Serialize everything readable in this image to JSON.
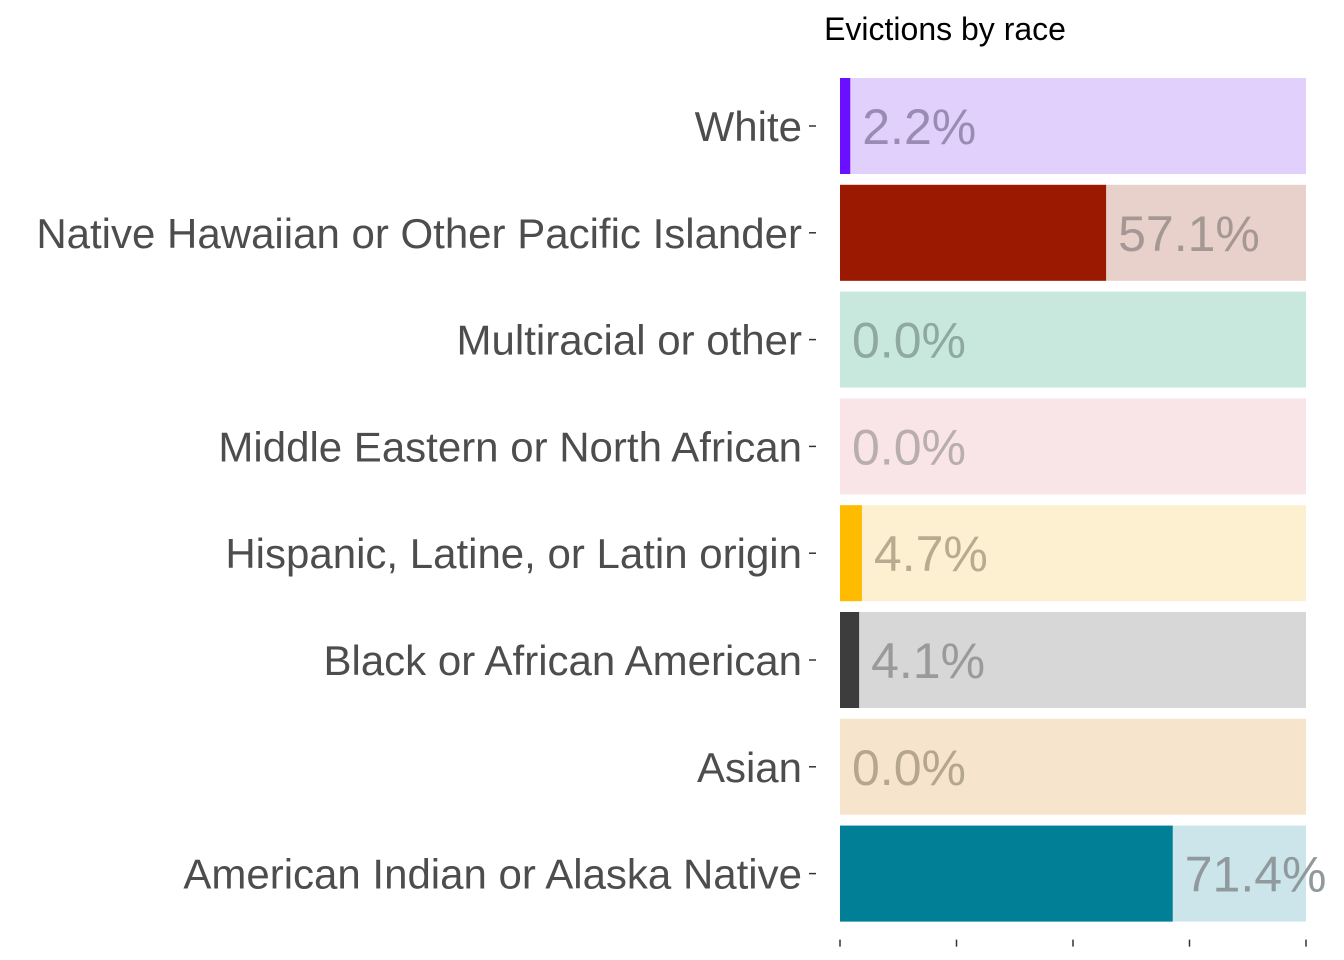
{
  "chart_data": {
    "type": "bar",
    "orientation": "horizontal",
    "title": "Evictions by race",
    "xlabel": "",
    "ylabel": "",
    "xlim": [
      0,
      100
    ],
    "grid": false,
    "legend": "none",
    "categories": [
      "White",
      "Native Hawaiian or Other Pacific Islander",
      "Multiracial or other",
      "Middle Eastern or North African",
      "Hispanic, Latine, or Latin origin",
      "Black or African American",
      "Asian",
      "American Indian or Alaska Native"
    ],
    "values": [
      2.2,
      57.1,
      0.0,
      0.0,
      4.7,
      4.1,
      0.0,
      71.4
    ],
    "value_labels": [
      "2.2%",
      "57.1%",
      "0.0%",
      "0.0%",
      "4.7%",
      "4.1%",
      "0.0%",
      "71.4%"
    ],
    "colors": [
      "#6a0fff",
      "#9b1900",
      "#2ca87a",
      "#e8a3ad",
      "#ffbb00",
      "#3d3d3d",
      "#d89a4a",
      "#007f96"
    ],
    "background_colors": [
      "#e0d0fb",
      "#e8d0cb",
      "#c8e8de",
      "#f9e5e8",
      "#fdf0d0",
      "#d7d7d7",
      "#f6e5cc",
      "#cce5eb"
    ],
    "label_colors": [
      "#9a8bb4",
      "#a59894",
      "#8fa9a1",
      "#b8adaf",
      "#b8ab90",
      "#9a9a9a",
      "#b5a78e",
      "#909a9d"
    ]
  }
}
